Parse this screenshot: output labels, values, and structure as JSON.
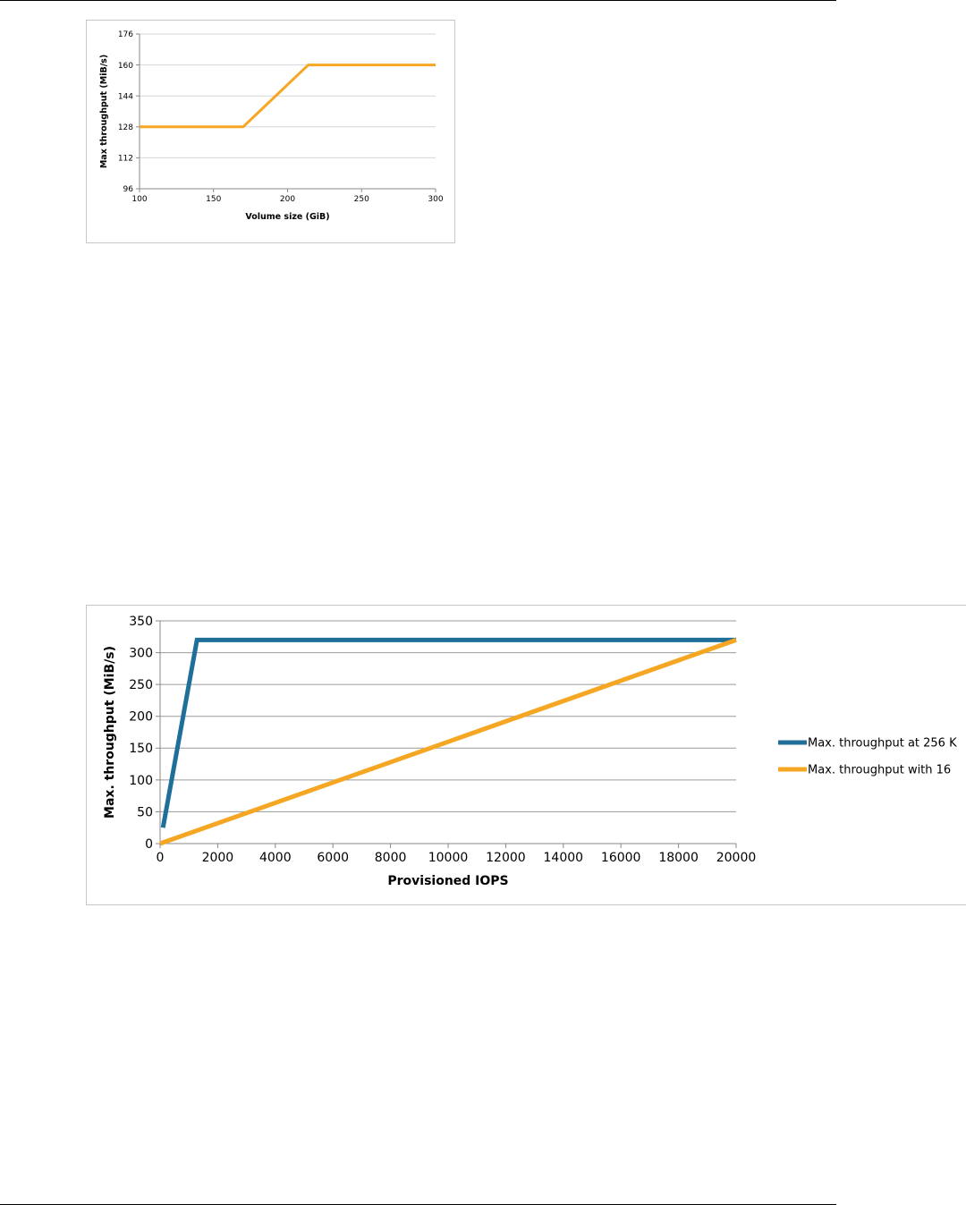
{
  "chart_data": [
    {
      "type": "line",
      "title": "",
      "xlabel": "Volume size (GiB)",
      "ylabel": "Max throughput (MiB/s)",
      "xlim": [
        100,
        300
      ],
      "ylim": [
        96,
        176
      ],
      "x_ticks": [
        "100",
        "150",
        "200",
        "250",
        "300"
      ],
      "y_ticks": [
        "96",
        "112",
        "128",
        "144",
        "160",
        "176"
      ],
      "grid": true,
      "legend": "none",
      "series": [
        {
          "color": "#f5a623",
          "x": [
            100,
            170,
            214,
            300
          ],
          "y": [
            128,
            128,
            160,
            160
          ]
        }
      ]
    },
    {
      "type": "line",
      "title": "",
      "xlabel": "Provisioned IOPS",
      "ylabel": "Max. throughput (MiB/s)",
      "xlim": [
        0,
        20000
      ],
      "ylim": [
        0,
        350
      ],
      "x_ticks": [
        "0",
        "2000",
        "4000",
        "6000",
        "8000",
        "10000",
        "12000",
        "14000",
        "16000",
        "18000",
        "20000"
      ],
      "y_ticks": [
        "0",
        "50",
        "100",
        "150",
        "200",
        "250",
        "300",
        "350"
      ],
      "grid": true,
      "legend": "right",
      "series": [
        {
          "name": "Max. throughput at 256 K",
          "color": "#1f6f98",
          "x": [
            100,
            1280,
            20000
          ],
          "y": [
            25,
            320,
            320
          ]
        },
        {
          "name": "Max. throughput with 16",
          "color": "#f5a623",
          "x": [
            0,
            20000
          ],
          "y": [
            0,
            320
          ]
        }
      ]
    }
  ]
}
